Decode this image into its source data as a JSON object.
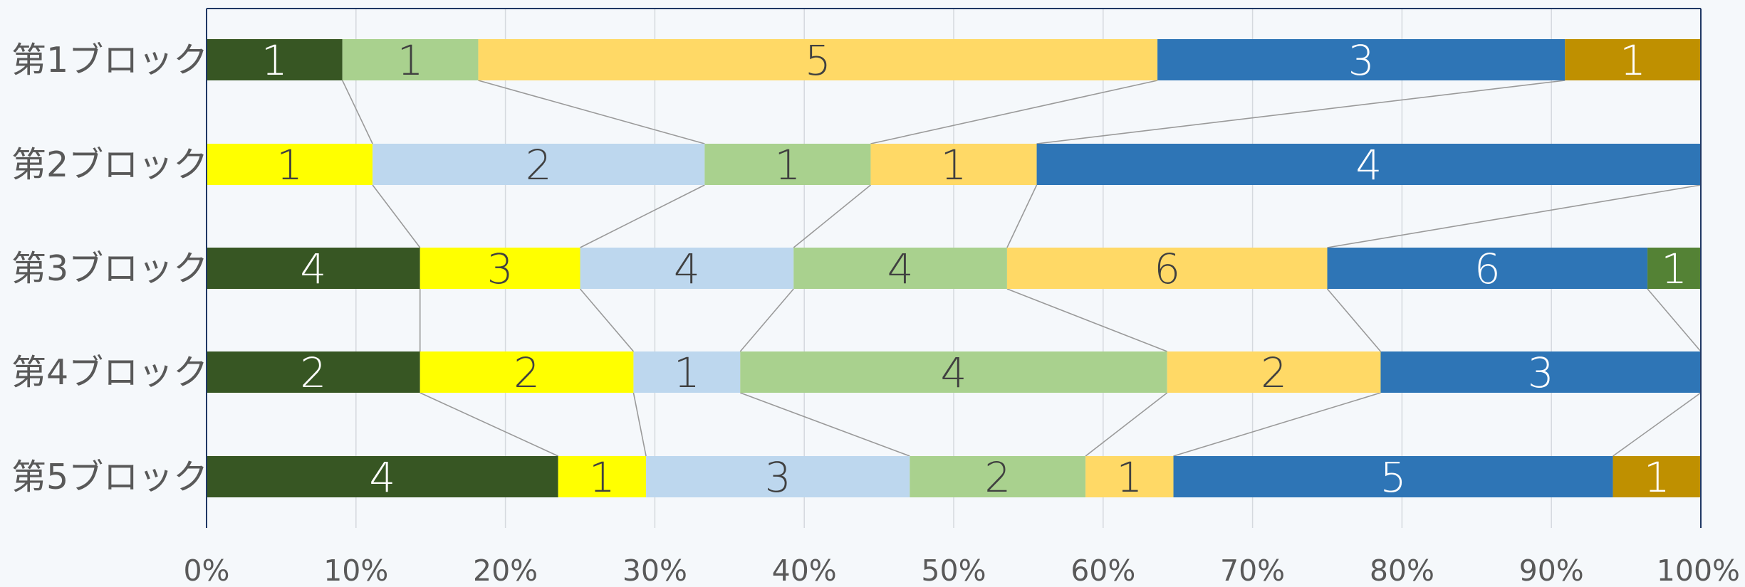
{
  "chart_data": {
    "type": "bar",
    "orientation": "horizontal",
    "stacked": "percent",
    "categories": [
      "第1ブロック",
      "第2ブロック",
      "第3ブロック",
      "第4ブロック",
      "第5ブロック"
    ],
    "segments": [
      [
        {
          "color": "#375623",
          "value": 1
        },
        {
          "color": "#a9d18e",
          "value": 1
        },
        {
          "color": "#ffd966",
          "value": 5
        },
        {
          "color": "#2e75b6",
          "value": 3
        },
        {
          "color": "#bf9000",
          "value": 1
        }
      ],
      [
        {
          "color": "#ffff00",
          "value": 1
        },
        {
          "color": "#bdd7ee",
          "value": 2
        },
        {
          "color": "#a9d18e",
          "value": 1
        },
        {
          "color": "#ffd966",
          "value": 1
        },
        {
          "color": "#2e75b6",
          "value": 4
        }
      ],
      [
        {
          "color": "#375623",
          "value": 4
        },
        {
          "color": "#ffff00",
          "value": 3
        },
        {
          "color": "#bdd7ee",
          "value": 4
        },
        {
          "color": "#a9d18e",
          "value": 4
        },
        {
          "color": "#ffd966",
          "value": 6
        },
        {
          "color": "#2e75b6",
          "value": 6
        },
        {
          "color": "#548235",
          "value": 1
        }
      ],
      [
        {
          "color": "#375623",
          "value": 2
        },
        {
          "color": "#ffff00",
          "value": 2
        },
        {
          "color": "#bdd7ee",
          "value": 1
        },
        {
          "color": "#a9d18e",
          "value": 4
        },
        {
          "color": "#ffd966",
          "value": 2
        },
        {
          "color": "#2e75b6",
          "value": 3
        }
      ],
      [
        {
          "color": "#375623",
          "value": 4
        },
        {
          "color": "#ffff00",
          "value": 1
        },
        {
          "color": "#bdd7ee",
          "value": 3
        },
        {
          "color": "#a9d18e",
          "value": 2
        },
        {
          "color": "#ffd966",
          "value": 1
        },
        {
          "color": "#2e75b6",
          "value": 5
        },
        {
          "color": "#bf9000",
          "value": 1
        }
      ]
    ],
    "x_ticks": [
      "0%",
      "10%",
      "20%",
      "30%",
      "40%",
      "50%",
      "60%",
      "70%",
      "80%",
      "90%",
      "100%"
    ],
    "xlim": [
      0,
      100
    ],
    "grid": true,
    "series_lines": true,
    "light_label_colors": [
      "#375623",
      "#2e75b6",
      "#548235",
      "#bf9000"
    ]
  }
}
